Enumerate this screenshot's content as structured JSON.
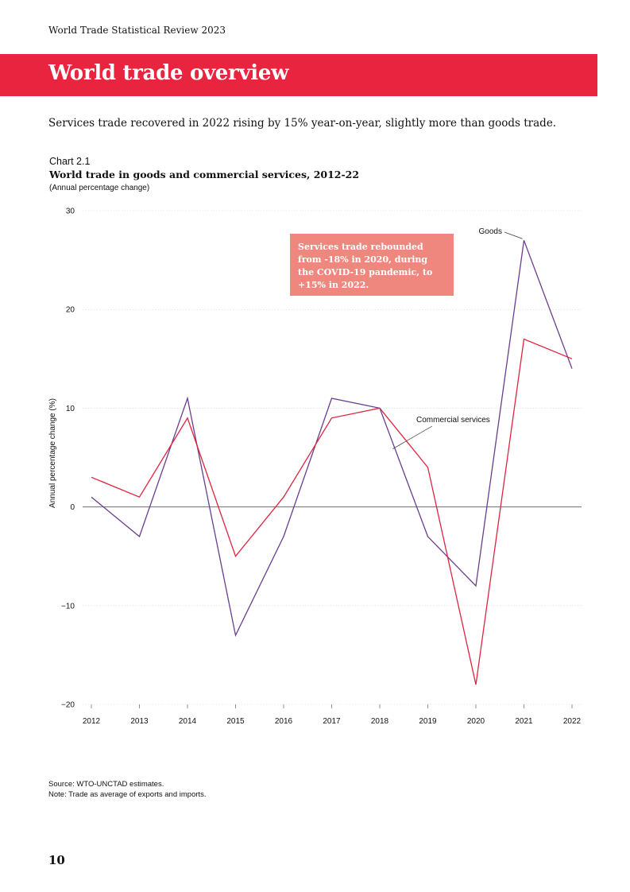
{
  "header": {
    "running_title": "World Trade Statistical Review 2023"
  },
  "banner": {
    "title": "World trade overview",
    "color": "#e8243f"
  },
  "lead": "Services trade recovered in 2022 rising by 15% year-on-year, slightly more than goods trade.",
  "chart_label": "Chart 2.1",
  "callout": {
    "text": "Services trade rebounded from -18% in 2020, during the COVID-19 pandemic, to +15% in 2022.",
    "color": "#f0877e"
  },
  "footer": {
    "source": "Source: WTO-UNCTAD estimates.",
    "note": "Note: Trade as average of exports and imports.",
    "page_number": "10"
  },
  "chart_data": {
    "type": "line",
    "title": "World trade in goods and commercial services, 2012-22",
    "subtitle": "(Annual percentage change)",
    "xlabel": "",
    "ylabel": "Annual percentage change (%)",
    "x": [
      "2012",
      "2013",
      "2014",
      "2015",
      "2016",
      "2017",
      "2018",
      "2019",
      "2020",
      "2021",
      "2022"
    ],
    "ylim": [
      -20,
      30
    ],
    "yticks": [
      30,
      20,
      10,
      0,
      -10,
      -20
    ],
    "ytick_labels": [
      "30",
      "20",
      "10",
      "0",
      "−10",
      "−20"
    ],
    "grid": true,
    "series": [
      {
        "name": "Goods",
        "color": "#6a3d8f",
        "values": [
          1,
          -3,
          11,
          -13,
          -3,
          11,
          10,
          -3,
          -8,
          27,
          14
        ]
      },
      {
        "name": "Commercial services",
        "color": "#e0243f",
        "values": [
          3,
          1,
          9,
          -5,
          1,
          9,
          10,
          4,
          -18,
          17,
          15
        ]
      }
    ]
  }
}
